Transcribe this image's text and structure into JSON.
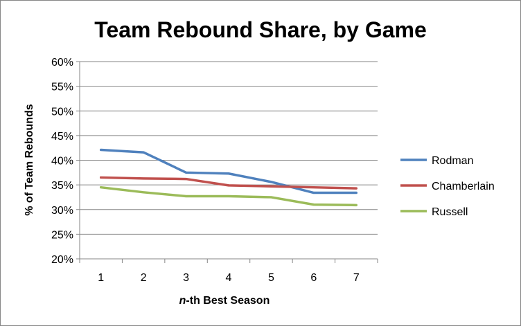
{
  "chart_data": {
    "type": "line",
    "title": "Team Rebound Share, by Game",
    "xlabel_prefix": "n",
    "xlabel_rest": "-th Best Season",
    "ylabel": "% of Team Rebounds",
    "x": [
      1,
      2,
      3,
      4,
      5,
      6,
      7
    ],
    "x_tick_labels": [
      "1",
      "2",
      "3",
      "4",
      "5",
      "6",
      "7"
    ],
    "ylim": [
      20,
      60
    ],
    "y_tick_values": [
      20,
      25,
      30,
      35,
      40,
      45,
      50,
      55,
      60
    ],
    "y_tick_labels": [
      "20%",
      "25%",
      "30%",
      "35%",
      "40%",
      "45%",
      "50%",
      "55%",
      "60%"
    ],
    "grid": "horizontal",
    "legend_position": "right",
    "series": [
      {
        "name": "Rodman",
        "color": "#4F81BD",
        "values": [
          42.1,
          41.6,
          37.5,
          37.3,
          35.6,
          33.4,
          33.4
        ]
      },
      {
        "name": "Chamberlain",
        "color": "#C0504D",
        "values": [
          36.5,
          36.3,
          36.2,
          34.9,
          34.7,
          34.5,
          34.3
        ]
      },
      {
        "name": "Russell",
        "color": "#9BBB59",
        "values": [
          34.5,
          33.5,
          32.7,
          32.7,
          32.5,
          31.0,
          30.9
        ]
      }
    ]
  }
}
